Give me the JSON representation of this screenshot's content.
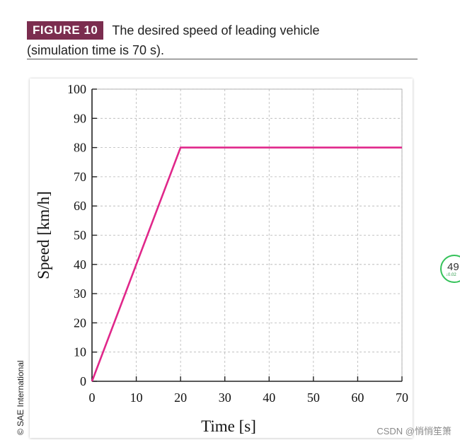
{
  "caption": {
    "figure_label": "FIGURE 10",
    "line1": "The desired speed of leading vehicle",
    "line2": "(simulation time is 70 s)."
  },
  "copyright": "© SAE International",
  "watermark": "CSDN @悄悄笙箫",
  "side_widget": {
    "value": "49",
    "delta": "↓0.02"
  },
  "colors": {
    "badge": "#7b2d4f",
    "series": "#e0278a",
    "grid": "#b5b5b5"
  },
  "chart_data": {
    "type": "line",
    "title": "",
    "xlabel": "Time [s]",
    "ylabel": "Speed [km/h]",
    "xlim": [
      0,
      70
    ],
    "ylim": [
      0,
      100
    ],
    "xticks": [
      0,
      10,
      20,
      30,
      40,
      50,
      60,
      70
    ],
    "yticks": [
      0,
      10,
      20,
      30,
      40,
      50,
      60,
      70,
      80,
      90,
      100
    ],
    "grid": true,
    "series": [
      {
        "x": [
          0,
          20,
          70
        ],
        "y": [
          0,
          80,
          80
        ],
        "color": "#e0278a"
      }
    ]
  }
}
